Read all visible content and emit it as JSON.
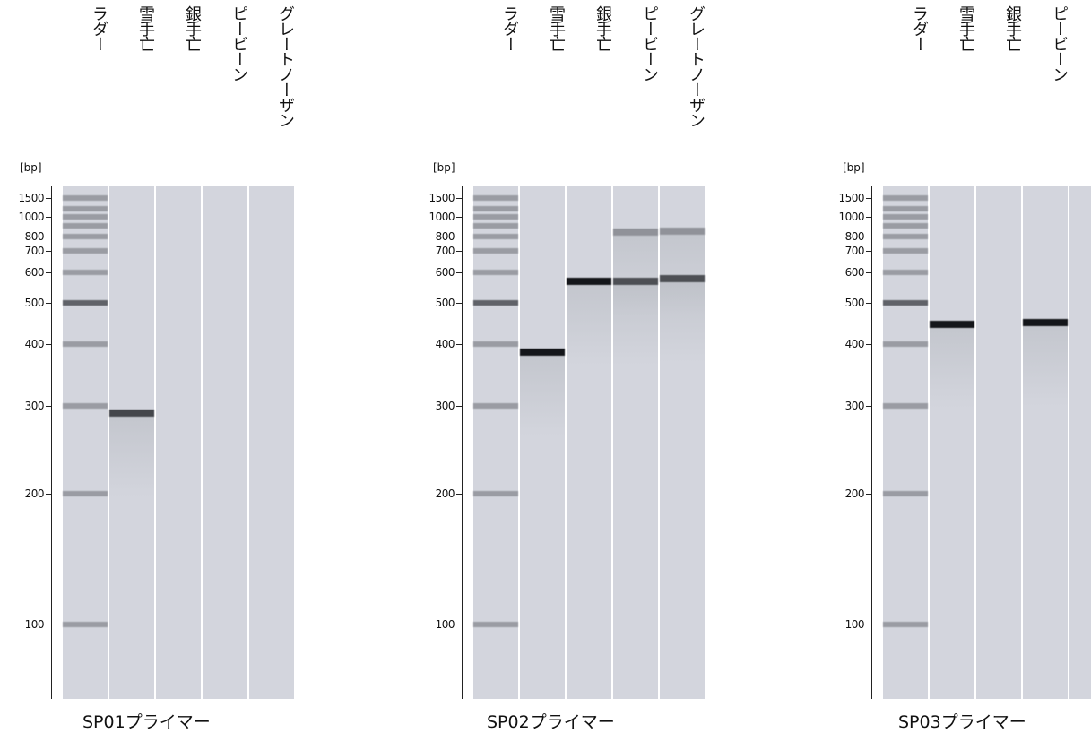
{
  "unit_label": "[bp]",
  "lanes": [
    "ラダー",
    "雪手亡",
    "銀手亡",
    "ピービーン",
    "グレートノーザン"
  ],
  "ticks": [
    1500,
    1000,
    800,
    700,
    600,
    500,
    400,
    300,
    200,
    100
  ],
  "ladder_bands": [
    1500,
    1200,
    1000,
    900,
    800,
    700,
    600,
    500,
    400,
    300,
    200,
    100
  ],
  "colors": {
    "lane_bg": "#d3d5dd",
    "strong_band": "#1f2226",
    "medium_band": "#5d646b",
    "ladder_band": "#9ea3aa"
  },
  "gels": [
    {
      "caption": "SP01プライマー",
      "bands": [
        [],
        [
          {
            "bp": 290,
            "intensity": 0.75
          }
        ],
        [],
        [],
        []
      ]
    },
    {
      "caption": "SP02プライマー",
      "bands": [
        [],
        [
          {
            "bp": 385,
            "intensity": 1.0
          }
        ],
        [
          {
            "bp": 570,
            "intensity": 1.0
          }
        ],
        [
          {
            "bp": 570,
            "intensity": 0.75
          },
          {
            "bp": 840,
            "intensity": 0.35
          }
        ],
        [
          {
            "bp": 578,
            "intensity": 0.75
          },
          {
            "bp": 850,
            "intensity": 0.35
          }
        ]
      ]
    },
    {
      "caption": "SP03プライマー",
      "bands": [
        [],
        [
          {
            "bp": 445,
            "intensity": 1.0
          }
        ],
        [],
        [
          {
            "bp": 450,
            "intensity": 1.0
          }
        ],
        []
      ]
    }
  ]
}
